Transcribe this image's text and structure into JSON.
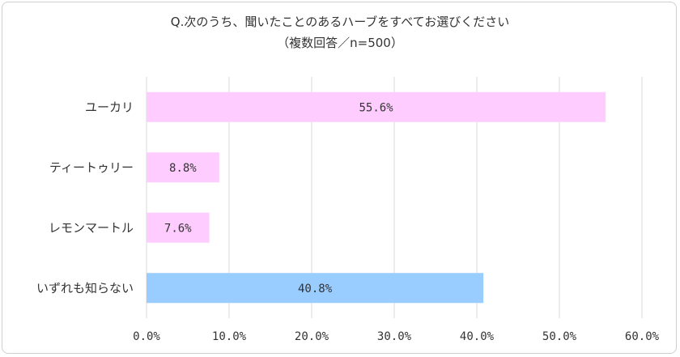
{
  "chart_data": {
    "type": "bar",
    "orientation": "horizontal",
    "title": "Q.次のうち、聞いたことのあるハーブをすべてお選びください",
    "subtitle": "（複数回答／n=500）",
    "categories": [
      "ユーカリ",
      "ティートゥリー",
      "レモンマートル",
      "いずれも知らない"
    ],
    "values": [
      55.6,
      8.8,
      7.6,
      40.8
    ],
    "data_labels": [
      "55.6%",
      "8.8%",
      "7.6%",
      "40.8%"
    ],
    "bar_colors": [
      "#ffccff",
      "#ffccff",
      "#ffccff",
      "#99ccff"
    ],
    "xlim": [
      0,
      60
    ],
    "xticks": [
      "0.0%",
      "10.0%",
      "20.0%",
      "30.0%",
      "40.0%",
      "50.0%",
      "60.0%"
    ],
    "grid": true,
    "gridline_color": "#d9d9d9"
  }
}
